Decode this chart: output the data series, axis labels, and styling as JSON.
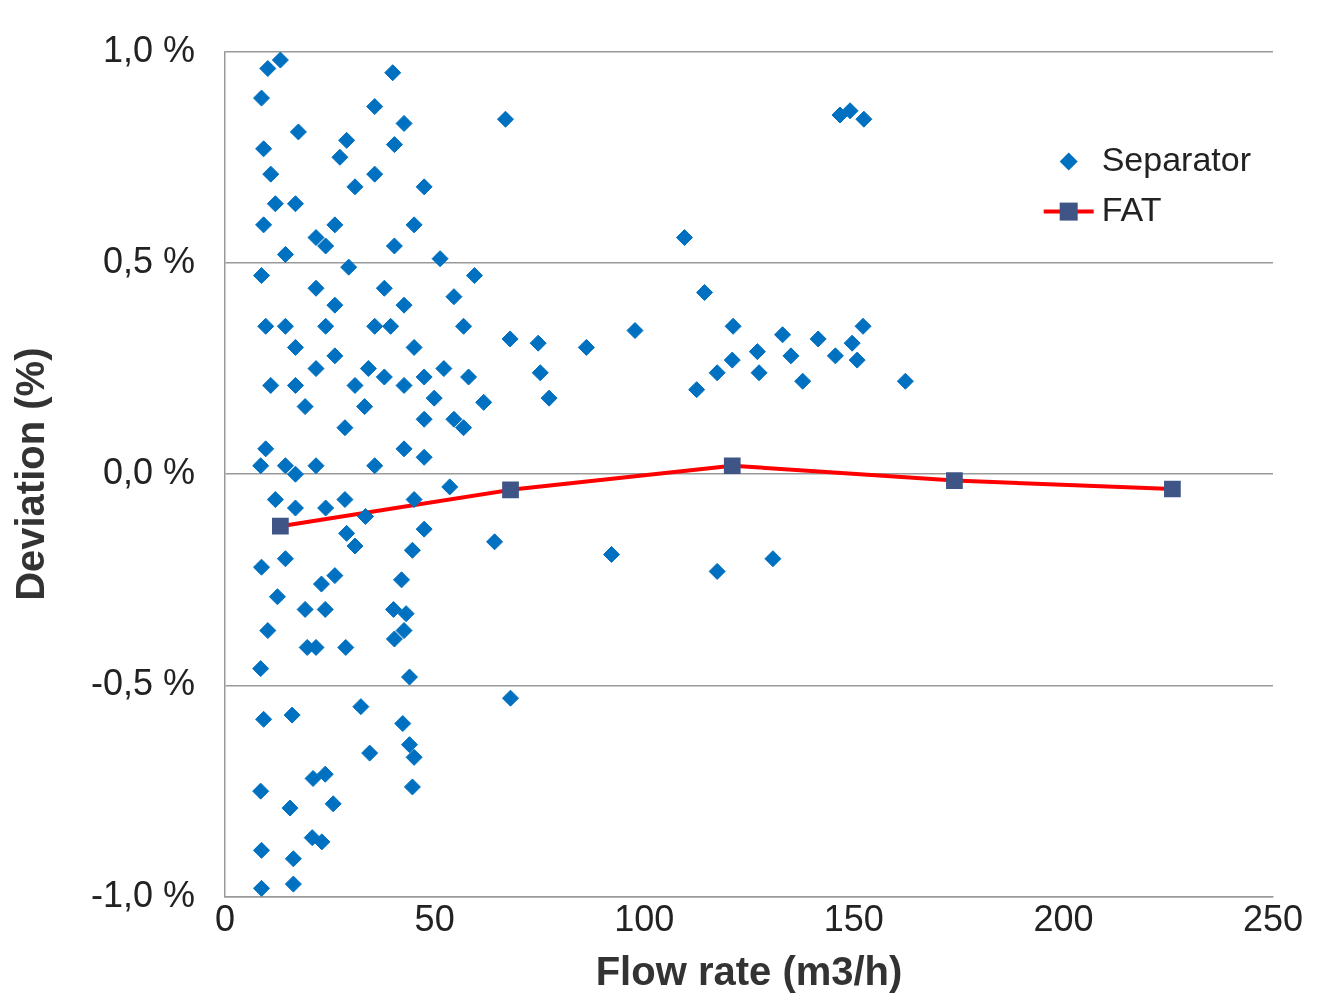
{
  "chart_data": {
    "type": "scatter",
    "xlabel": "Flow rate (m3/h)",
    "ylabel": "Deviation (%)",
    "xlim": [
      0,
      250
    ],
    "xticks": [
      0,
      50,
      100,
      150,
      200,
      250
    ],
    "ylim": [
      -1,
      1
    ],
    "yticks": [
      {
        "value": -1,
        "label": "-1,0 %"
      },
      {
        "value": -0.5,
        "label": "-0,5 %"
      },
      {
        "value": 0,
        "label": "0,0 %"
      },
      {
        "value": 0.5,
        "label": "0,5 %"
      },
      {
        "value": 1,
        "label": "1,0 %"
      }
    ],
    "grid": "y",
    "legend": "top right",
    "series": [
      {
        "name": "Separator",
        "type": "scatter",
        "color": "#0070c0",
        "marker": "diamond",
        "x": [
          8.7,
          10.2,
          13.2,
          9.2,
          17.5,
          29,
          40,
          35.7,
          66.9,
          68,
          74.7,
          75.2,
          77.3,
          86.2,
          97.8,
          59.5,
          109.6,
          114.4,
          112.5,
          117.4,
          121.2,
          121,
          127,
          127.4,
          133,
          135,
          137.8,
          141.5,
          145.6,
          149.6,
          152.2,
          150.8,
          162.3,
          146.7,
          149.1,
          152.4,
          64.3,
          68.1,
          92.2,
          117.4,
          130.7,
          8.7,
          16.3,
          8.7,
          16.3,
          20.8,
          23.1,
          25.8,
          23.9,
          21,
          15.5,
          16,
          9.2,
          8.5,
          8.5,
          10.2,
          12.5,
          14.4,
          8.7,
          19.6,
          21.7,
          28.8,
          32.4,
          34.5,
          44,
          42.4,
          45.1,
          44.7,
          44,
          40.4,
          42.7,
          40.2,
          42.1,
          43.2,
          23.9,
          23,
          19.1,
          26.2,
          29,
          31,
          44.7,
          47.5,
          53.6,
          9.7,
          10.9,
          9.7,
          8.7,
          12,
          16.8,
          14.4,
          21.7,
          24,
          26.2,
          16.8,
          19.1,
          28.6,
          31,
          34.2,
          35.7,
          38,
          40.4,
          42.7,
          45.1,
          47.5,
          49.9,
          52.2,
          54.6,
          56.9,
          58.1,
          56.9,
          51.3,
          45.1,
          47.5,
          40.4,
          42.7,
          35.7,
          31,
          26.2,
          21.7,
          27.4,
          24,
          14.4,
          16.8,
          21.7,
          28.6,
          35.7,
          42.7,
          47.5,
          45.1,
          33.5,
          24,
          16.8,
          12,
          8.5,
          9.2,
          10.9,
          33.3,
          38,
          42.7,
          47.5,
          16.8,
          14.4,
          21.7,
          26.2,
          29.5,
          39.5,
          54.6,
          61.7
        ],
        "values": [
          0.89,
          0.96,
          0.98,
          0.77,
          0.81,
          0.79,
          0.95,
          0.87,
          0.84,
          0.32,
          0.31,
          0.24,
          0.18,
          0.3,
          0.34,
          0.47,
          0.56,
          0.43,
          0.2,
          0.24,
          0.35,
          0.27,
          0.29,
          0.24,
          0.33,
          0.28,
          0.22,
          0.32,
          0.28,
          0.31,
          0.35,
          0.27,
          0.22,
          0.85,
          0.86,
          0.84,
          -0.16,
          -0.53,
          -0.19,
          -0.23,
          -0.2,
          -0.98,
          -0.97,
          -0.89,
          -0.91,
          -0.86,
          -0.87,
          -0.78,
          -0.71,
          -0.72,
          -0.79,
          -0.57,
          -0.58,
          -0.75,
          -0.46,
          -0.37,
          -0.29,
          -0.2,
          -0.22,
          -0.41,
          -0.41,
          -0.41,
          -0.55,
          -0.66,
          -0.64,
          -0.59,
          -0.67,
          -0.74,
          -0.48,
          -0.39,
          -0.37,
          -0.32,
          -0.25,
          -0.33,
          -0.32,
          -0.26,
          -0.32,
          -0.24,
          -0.14,
          -0.17,
          -0.18,
          -0.13,
          -0.03,
          0.35,
          0.21,
          0.06,
          0.47,
          0.64,
          0.64,
          0.52,
          0.44,
          0.35,
          0.28,
          0.3,
          0.16,
          0.11,
          0.21,
          0.25,
          0.35,
          0.44,
          0.54,
          0.4,
          0.3,
          0.23,
          0.18,
          0.25,
          0.13,
          0.11,
          0.23,
          0.35,
          0.51,
          0.59,
          0.68,
          0.78,
          0.83,
          0.71,
          0.68,
          0.59,
          0.56,
          0.75,
          0.54,
          0.02,
          0,
          0.02,
          -0.06,
          0.02,
          0.06,
          0.04,
          -0.06,
          -0.1,
          -0.08,
          -0.08,
          -0.06,
          0.02,
          0.59,
          0.71,
          0.16,
          0.23,
          0.21,
          0.13,
          0.21,
          0.35,
          0.25,
          0.4,
          0.49,
          0.35,
          0.42,
          0.17
        ]
      },
      {
        "name": "FAT",
        "type": "line",
        "color": "#ff0000",
        "marker": "square",
        "line_style": "solid",
        "x": [
          13.2,
          68.1,
          121,
          174,
          226
        ],
        "values": [
          -0.123,
          -0.037,
          0.02,
          -0.015,
          -0.035
        ]
      }
    ]
  }
}
